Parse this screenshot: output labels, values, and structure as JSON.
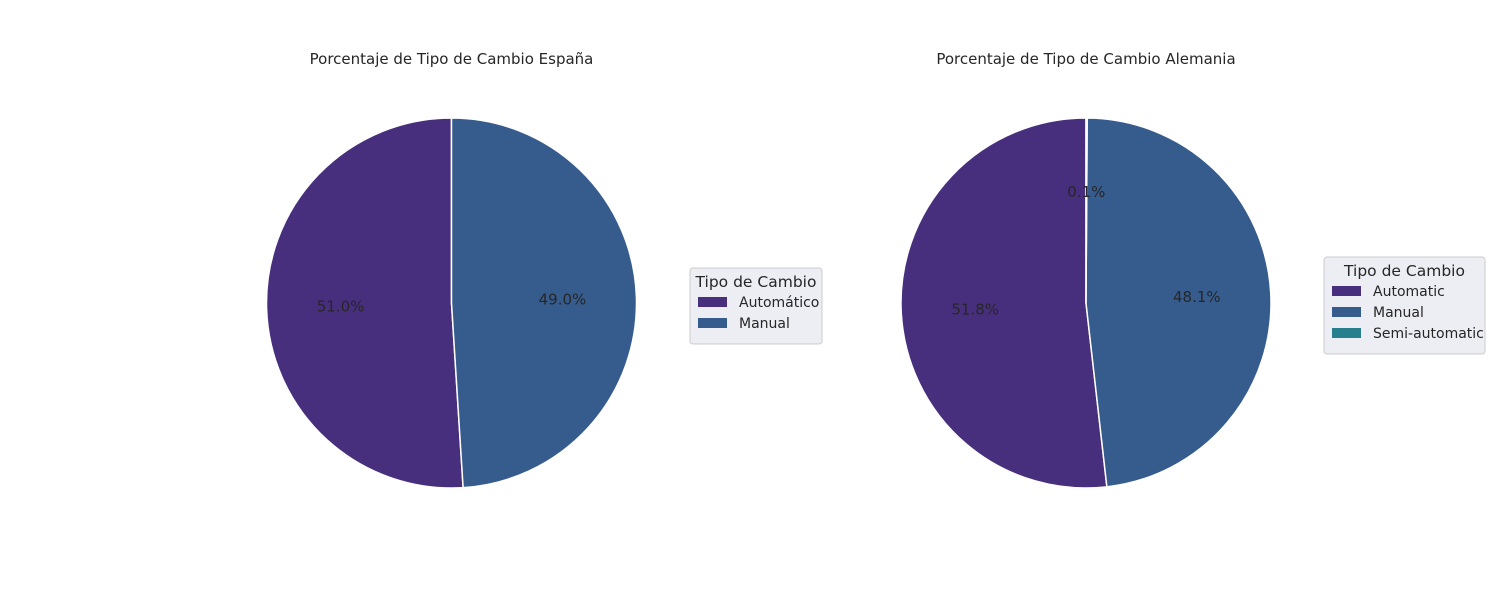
{
  "chart_data": [
    {
      "type": "pie",
      "title": "Porcentaje de Tipo de Cambio España",
      "labels": [
        "Automático",
        "Manual"
      ],
      "values": [
        51.0,
        49.0
      ],
      "value_labels": [
        "51.0%",
        "49.0%"
      ],
      "colors": [
        "#472F7D",
        "#365C8D"
      ],
      "start_angle_deg": 90,
      "direction": "counterclockwise",
      "legend": {
        "title": "Tipo de Cambio",
        "placement": "right"
      }
    },
    {
      "type": "pie",
      "title": "Porcentaje de Tipo de Cambio Alemania",
      "labels": [
        "Automatic",
        "Manual",
        "Semi-automatic"
      ],
      "values": [
        51.8,
        48.1,
        0.1
      ],
      "value_labels": [
        "51.8%",
        "48.1%",
        "0.1%"
      ],
      "colors": [
        "#472F7D",
        "#365C8D",
        "#277F8E"
      ],
      "start_angle_deg": 90,
      "direction": "counterclockwise",
      "legend": {
        "title": "Tipo de Cambio",
        "placement": "right"
      }
    }
  ]
}
